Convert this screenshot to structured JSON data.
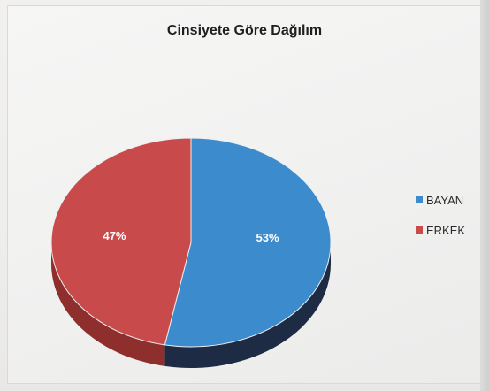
{
  "chart_data": {
    "type": "pie",
    "title": "Cinsiyete Göre Dağılım",
    "series": [
      {
        "name": "BAYAN",
        "value": 53,
        "label": "53%",
        "color": "#3c8ccd",
        "side_color": "#1d2b45"
      },
      {
        "name": "ERKEK",
        "value": 47,
        "label": "47%",
        "color": "#c84a4a",
        "side_color": "#8e2f2e"
      }
    ],
    "legend": "right",
    "style": "3d"
  }
}
